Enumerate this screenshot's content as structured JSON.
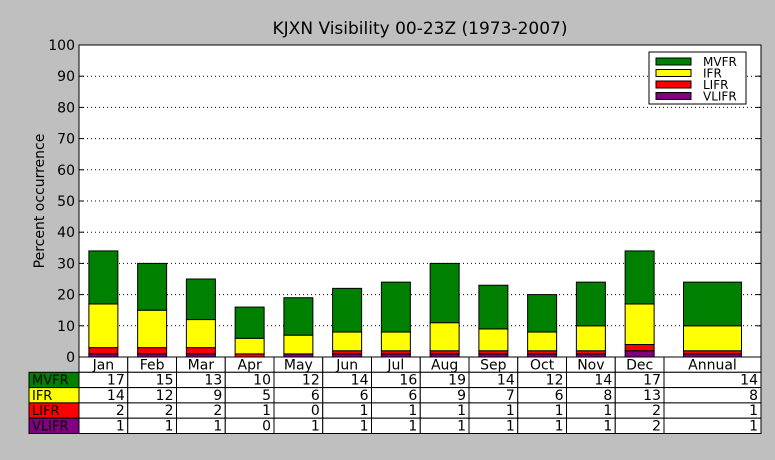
{
  "chart_data": {
    "type": "bar",
    "stacked": true,
    "title": "KJXN Visibility 00-23Z (1973-2007)",
    "xlabel": "",
    "ylabel": "Percent occurrence",
    "ylim": [
      0,
      100
    ],
    "yticks": [
      0,
      10,
      20,
      30,
      40,
      50,
      60,
      70,
      80,
      90,
      100
    ],
    "grid": "horizontal dotted",
    "legend_position": "top-right",
    "categories": [
      "Jan",
      "Feb",
      "Mar",
      "Apr",
      "May",
      "Jun",
      "Jul",
      "Aug",
      "Sep",
      "Oct",
      "Nov",
      "Dec",
      "Annual"
    ],
    "series": [
      {
        "name": "VLIFR",
        "color": "#800080",
        "values": [
          1,
          1,
          1,
          0,
          1,
          1,
          1,
          1,
          1,
          1,
          1,
          2,
          1
        ]
      },
      {
        "name": "LIFR",
        "color": "#ff0000",
        "values": [
          2,
          2,
          2,
          1,
          0,
          1,
          1,
          1,
          1,
          1,
          1,
          2,
          1
        ]
      },
      {
        "name": "IFR",
        "color": "#ffff00",
        "values": [
          14,
          12,
          9,
          5,
          6,
          6,
          6,
          9,
          7,
          6,
          8,
          13,
          8
        ]
      },
      {
        "name": "MVFR",
        "color": "#008000",
        "values": [
          17,
          15,
          13,
          10,
          12,
          14,
          16,
          19,
          14,
          12,
          14,
          17,
          14
        ]
      }
    ],
    "legend_order": [
      "MVFR",
      "IFR",
      "LIFR",
      "VLIFR"
    ],
    "table_row_order": [
      "MVFR",
      "IFR",
      "LIFR",
      "VLIFR"
    ]
  }
}
